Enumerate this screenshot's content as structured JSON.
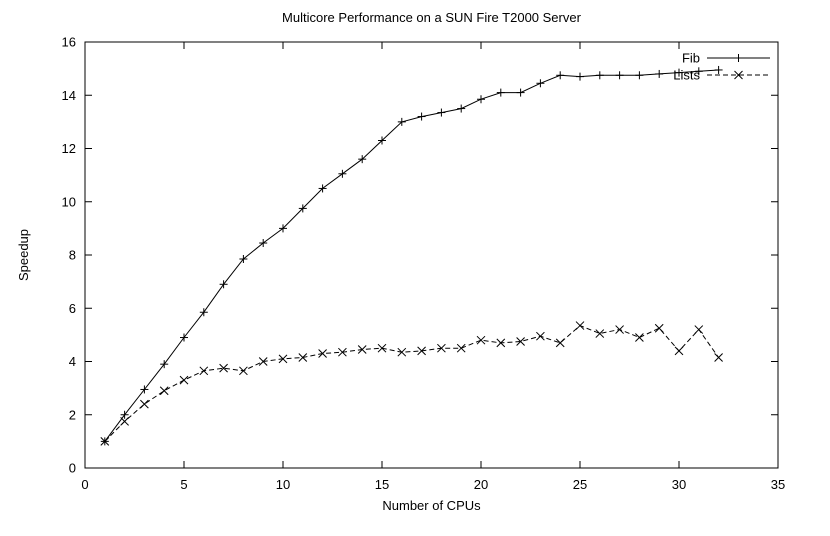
{
  "page": {
    "background": "#ffffff"
  },
  "chart_data": {
    "type": "line",
    "title": "Multicore Performance on a SUN Fire T2000 Server",
    "xlabel": "Number of CPUs",
    "ylabel": "Speedup",
    "xlim": [
      0,
      35
    ],
    "ylim": [
      0,
      16
    ],
    "xticks": [
      0,
      5,
      10,
      15,
      20,
      25,
      30,
      35
    ],
    "yticks": [
      0,
      2,
      4,
      6,
      8,
      10,
      12,
      14,
      16
    ],
    "grid": false,
    "legend_position": "top-right",
    "axis_color": "#000000",
    "x": [
      1,
      2,
      3,
      4,
      5,
      6,
      7,
      8,
      9,
      10,
      11,
      12,
      13,
      14,
      15,
      16,
      17,
      18,
      19,
      20,
      21,
      22,
      23,
      24,
      25,
      26,
      27,
      28,
      29,
      30,
      31,
      32
    ],
    "series": [
      {
        "name": "Fib",
        "marker": "plus",
        "line": "solid",
        "color": "#000000",
        "values": [
          1.0,
          2.0,
          2.95,
          3.9,
          4.9,
          5.85,
          6.9,
          7.85,
          8.45,
          9.0,
          9.75,
          10.5,
          11.05,
          11.6,
          12.3,
          13.0,
          13.2,
          13.35,
          13.5,
          13.85,
          14.1,
          14.1,
          14.45,
          14.75,
          14.7,
          14.75,
          14.75,
          14.75,
          14.8,
          14.85,
          14.9,
          14.95
        ]
      },
      {
        "name": "Lists",
        "marker": "cross",
        "line": "dashed",
        "color": "#000000",
        "values": [
          1.0,
          1.75,
          2.4,
          2.9,
          3.3,
          3.65,
          3.75,
          3.65,
          4.0,
          4.1,
          4.15,
          4.3,
          4.35,
          4.45,
          4.5,
          4.35,
          4.4,
          4.5,
          4.5,
          4.8,
          4.7,
          4.75,
          4.95,
          4.7,
          5.35,
          5.05,
          5.2,
          4.9,
          5.25,
          4.4,
          5.2,
          4.15
        ]
      }
    ]
  }
}
